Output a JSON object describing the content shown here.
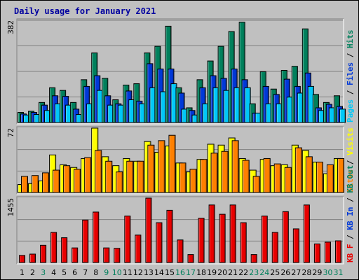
{
  "chart_data": {
    "type": "bar",
    "title": "Daily usage for January 2021",
    "categories": [
      "1",
      "2",
      "3",
      "4",
      "5",
      "6",
      "7",
      "8",
      "9",
      "10",
      "11",
      "12",
      "13",
      "14",
      "15",
      "16",
      "17",
      "18",
      "19",
      "20",
      "21",
      "22",
      "23",
      "24",
      "25",
      "26",
      "27",
      "28",
      "29",
      "30",
      "31"
    ],
    "weekend_days": [
      "3",
      "9",
      "10",
      "16",
      "17",
      "23",
      "24",
      "30",
      "31"
    ],
    "colors": {
      "hits": "#00805c",
      "files": "#0038d8",
      "pages": "#00c8f8",
      "visits": "#ffff00",
      "sites": "#ff8000",
      "kbytes": "#e80000",
      "weekday_label": "#000000",
      "weekend_label": "#00805c",
      "panel_bg": "#c0c0c0",
      "title": "#0000a0"
    },
    "panels": [
      {
        "id": "hits-files-pages",
        "max_label": "382",
        "ylim": [
          0,
          382
        ],
        "side_labels": [
          {
            "text": "Pages",
            "color": "#00c8f8"
          },
          {
            "text": " / ",
            "color": "#000000"
          },
          {
            "text": "Files",
            "color": "#0038d8"
          },
          {
            "text": " / ",
            "color": "#000000"
          },
          {
            "text": "Hits",
            "color": "#00805c"
          }
        ],
        "series": [
          {
            "name": "Hits",
            "color": "#00805c",
            "values": [
              38,
              42,
              75,
              130,
              120,
              75,
              160,
              260,
              165,
              85,
              140,
              145,
              260,
              285,
              360,
              130,
              55,
              160,
              230,
              285,
              340,
              375,
              70,
              190,
              125,
              195,
              210,
              350,
              105,
              75,
              100
            ]
          },
          {
            "name": "Files",
            "color": "#0038d8",
            "values": [
              32,
              38,
              65,
              100,
              98,
              50,
              135,
              175,
              100,
              70,
              118,
              80,
              220,
              200,
              200,
              110,
              45,
              130,
              175,
              165,
              200,
              160,
              35,
              135,
              105,
              162,
              135,
              185,
              55,
              68,
              60
            ]
          },
          {
            "name": "Pages",
            "color": "#00c8f8",
            "values": [
              28,
              30,
              45,
              70,
              65,
              30,
              70,
              120,
              65,
              65,
              85,
              70,
              130,
              115,
              145,
              50,
              28,
              70,
              130,
              120,
              130,
              130,
              35,
              70,
              70,
              95,
              110,
              135,
              45,
              55,
              50
            ]
          }
        ]
      },
      {
        "id": "visits-sites",
        "max_label": "72",
        "ylim": [
          0,
          72
        ],
        "side_labels": [
          {
            "text": "Sites",
            "color": "#ff8000"
          },
          {
            "text": " / ",
            "color": "#000000"
          },
          {
            "text": "Visits",
            "color": "#ffff00"
          }
        ],
        "series": [
          {
            "name": "Visits",
            "color": "#ffff00",
            "values": [
              9,
              10,
              13,
              42,
              31,
              28,
              38,
              72,
              40,
              30,
              38,
              35,
              57,
              45,
              52,
              33,
              23,
              37,
              54,
              53,
              61,
              38,
              25,
              37,
              30,
              31,
              53,
              47,
              34,
              21,
              38
            ]
          },
          {
            "name": "Sites",
            "color": "#ff8000",
            "values": [
              18,
              19,
              22,
              25,
              30,
              26,
              39,
              47,
              35,
              23,
              35,
              35,
              53,
              58,
              64,
              33,
              26,
              37,
              44,
              46,
              58,
              36,
              18,
              38,
              32,
              28,
              50,
              40,
              34,
              31,
              38
            ]
          }
        ]
      },
      {
        "id": "kbytes",
        "max_label": "1455",
        "ylim": [
          0,
          1455
        ],
        "side_labels": [
          {
            "text": "KB F",
            "color": "#e80000"
          },
          {
            "text": " / ",
            "color": "#000000"
          },
          {
            "text": "KB In",
            "color": "#0038d8"
          },
          {
            "text": " / ",
            "color": "#000000"
          },
          {
            "text": "KB Out",
            "color": "#00805c"
          }
        ],
        "series": [
          {
            "name": "KB F",
            "color": "#e80000",
            "values": [
              160,
              190,
              390,
              680,
              560,
              330,
              960,
              1140,
              330,
              320,
              1050,
              620,
              1455,
              900,
              1180,
              510,
              180,
              1000,
              1300,
              1090,
              1300,
              900,
              180,
              1050,
              680,
              1150,
              760,
              1300,
              420,
              460,
              490
            ]
          }
        ]
      }
    ]
  }
}
